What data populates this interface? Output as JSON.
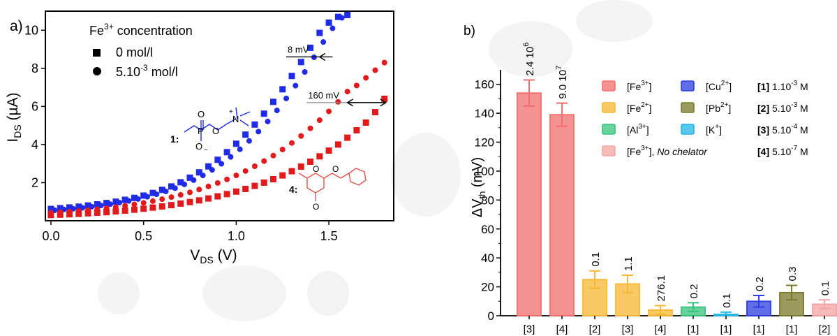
{
  "colors": {
    "blue": "#1f2be6",
    "red": "#e31a1c",
    "fe3": "#f26d6d",
    "fe2": "#f7b733",
    "al": "#35c27b",
    "cu": "#2c3ee0",
    "pb": "#7a7a2a",
    "k": "#22b6e6",
    "nochel": "#f4a3a3"
  },
  "chart_data": [
    {
      "type": "scatter",
      "panel_label": "a)",
      "xlabel_main": "V",
      "xlabel_sub": "DS",
      "xlabel_unit": " (V)",
      "ylabel_main": "I",
      "ylabel_sub": "DS",
      "ylabel_unit": " (µA)",
      "xlim": [
        -0.03,
        1.85
      ],
      "ylim": [
        0,
        11
      ],
      "xticks": [
        "0.0",
        "0.5",
        "1.0",
        "1.5"
      ],
      "yticks": [
        "2",
        "4",
        "6",
        "8",
        "10"
      ],
      "legend_title": "Fe",
      "legend_title_sup": "3+",
      "legend_title_rest": " concentration",
      "legend": [
        {
          "marker": "square",
          "label": "0 mol/l"
        },
        {
          "marker": "circle",
          "label_pre": "5.10",
          "label_sup": "-3",
          "label_post": " mol/l"
        }
      ],
      "series": [
        {
          "compound": "1",
          "marker_style": "square",
          "color": "blue",
          "x": [
            0.0,
            0.05,
            0.1,
            0.15,
            0.2,
            0.25,
            0.3,
            0.35,
            0.4,
            0.45,
            0.5,
            0.55,
            0.6,
            0.65,
            0.7,
            0.75,
            0.8,
            0.85,
            0.9,
            0.95,
            1.0,
            1.05,
            1.1,
            1.15,
            1.2,
            1.25,
            1.3,
            1.35,
            1.4,
            1.45,
            1.5,
            1.55,
            1.6
          ],
          "y": [
            0.62,
            0.66,
            0.7,
            0.74,
            0.8,
            0.86,
            0.93,
            1.0,
            1.1,
            1.2,
            1.32,
            1.46,
            1.62,
            1.8,
            2.02,
            2.26,
            2.54,
            2.85,
            3.2,
            3.6,
            4.04,
            4.52,
            5.05,
            5.62,
            6.24,
            6.9,
            7.6,
            8.33,
            9.08,
            9.86,
            10.4,
            10.7,
            10.8
          ]
        },
        {
          "compound": "1",
          "marker_style": "circle",
          "color": "blue",
          "x": [
            0.02,
            0.07,
            0.12,
            0.17,
            0.22,
            0.27,
            0.32,
            0.37,
            0.42,
            0.47,
            0.52,
            0.57,
            0.62,
            0.67,
            0.72,
            0.77,
            0.82,
            0.87,
            0.92,
            0.97,
            1.02,
            1.07,
            1.12,
            1.17,
            1.22,
            1.27,
            1.32,
            1.37,
            1.42,
            1.47,
            1.52,
            1.57
          ],
          "y": [
            0.55,
            0.59,
            0.63,
            0.68,
            0.74,
            0.8,
            0.87,
            0.95,
            1.04,
            1.14,
            1.26,
            1.39,
            1.54,
            1.71,
            1.91,
            2.13,
            2.38,
            2.67,
            2.99,
            3.35,
            3.75,
            4.19,
            4.68,
            5.21,
            5.79,
            6.42,
            7.09,
            7.81,
            8.58,
            9.38,
            10.1,
            10.65
          ]
        },
        {
          "compound": "4",
          "marker_style": "square",
          "color": "red",
          "x": [
            0.0,
            0.05,
            0.1,
            0.15,
            0.2,
            0.25,
            0.3,
            0.35,
            0.4,
            0.45,
            0.5,
            0.55,
            0.6,
            0.65,
            0.7,
            0.75,
            0.8,
            0.85,
            0.9,
            0.95,
            1.0,
            1.05,
            1.1,
            1.15,
            1.2,
            1.25,
            1.3,
            1.35,
            1.4,
            1.45,
            1.5,
            1.55,
            1.6,
            1.65,
            1.7,
            1.75,
            1.8
          ],
          "y": [
            0.3,
            0.32,
            0.34,
            0.36,
            0.39,
            0.42,
            0.45,
            0.49,
            0.53,
            0.58,
            0.63,
            0.69,
            0.75,
            0.82,
            0.9,
            0.98,
            1.07,
            1.17,
            1.28,
            1.4,
            1.53,
            1.67,
            1.83,
            2.0,
            2.18,
            2.38,
            2.6,
            2.84,
            3.1,
            3.38,
            3.68,
            4.0,
            4.36,
            4.75,
            5.15,
            5.7,
            6.4
          ]
        },
        {
          "compound": "4",
          "marker_style": "circle",
          "color": "red",
          "x": [
            0.0,
            0.05,
            0.1,
            0.15,
            0.2,
            0.25,
            0.3,
            0.35,
            0.4,
            0.45,
            0.5,
            0.55,
            0.6,
            0.65,
            0.7,
            0.75,
            0.8,
            0.85,
            0.9,
            0.95,
            1.0,
            1.05,
            1.1,
            1.15,
            1.2,
            1.25,
            1.3,
            1.35,
            1.4,
            1.45,
            1.5,
            1.55,
            1.6,
            1.65,
            1.7,
            1.75,
            1.8
          ],
          "y": [
            0.42,
            0.45,
            0.48,
            0.52,
            0.56,
            0.61,
            0.66,
            0.72,
            0.79,
            0.86,
            0.94,
            1.03,
            1.13,
            1.24,
            1.36,
            1.49,
            1.64,
            1.8,
            1.98,
            2.17,
            2.38,
            2.61,
            2.86,
            3.13,
            3.42,
            3.74,
            4.08,
            4.45,
            4.85,
            5.28,
            5.74,
            6.24,
            6.78,
            7.1,
            7.5,
            7.9,
            8.3
          ]
        }
      ],
      "annotations": [
        {
          "text": "8 mV",
          "line_y": 8.6,
          "x_start": 1.27,
          "x_end": 1.52,
          "arrow_x": 1.45
        },
        {
          "text": "160 mV",
          "line_y": 6.2,
          "x_start": 1.38,
          "x_end": 1.8,
          "arrow_x": 1.6
        }
      ],
      "compound_labels": [
        {
          "text": "1:",
          "color": "blue"
        },
        {
          "text": "4:",
          "color": "red"
        }
      ]
    },
    {
      "type": "bar",
      "panel_label": "b)",
      "ylabel_main": "ΔV",
      "ylabel_sub": "th",
      "ylabel_unit": " (mV)",
      "ylim": [
        0,
        170
      ],
      "yticks": [
        "0",
        "20",
        "40",
        "60",
        "80",
        "100",
        "120",
        "140",
        "160"
      ],
      "categories": [
        "[3]",
        "[4]",
        "[2]",
        "[3]",
        "[4]",
        "[1]",
        "[1]",
        "[1]",
        "[1]",
        "[2]"
      ],
      "values": [
        154,
        139,
        25,
        22,
        4,
        6,
        1,
        10,
        16,
        8
      ],
      "errors": [
        9,
        8,
        6,
        6,
        3,
        3,
        1.5,
        4,
        5,
        3
      ],
      "bar_colors": [
        "fe3",
        "fe3",
        "fe2",
        "fe2",
        "fe2",
        "al",
        "k",
        "cu",
        "pb",
        "nochel"
      ],
      "bar_labels": [
        {
          "base": "2.4 10",
          "sup": "6"
        },
        {
          "base": "9.0 10",
          "sup": "7"
        },
        {
          "base": "0.1",
          "sup": ""
        },
        {
          "base": "1.1",
          "sup": ""
        },
        {
          "base": "276.1",
          "sup": ""
        },
        {
          "base": "0.2",
          "sup": ""
        },
        {
          "base": "0.1",
          "sup": ""
        },
        {
          "base": "0.2",
          "sup": ""
        },
        {
          "base": "0.3",
          "sup": ""
        },
        {
          "base": "0.1",
          "sup": ""
        }
      ],
      "legend": [
        {
          "color": "fe3",
          "base": "[Fe",
          "sup": "3+",
          "tail": "]",
          "italic": ""
        },
        {
          "color": "fe2",
          "base": "[Fe",
          "sup": "2+",
          "tail": "]",
          "italic": ""
        },
        {
          "color": "al",
          "base": "[Al",
          "sup": "3+",
          "tail": "]",
          "italic": ""
        },
        {
          "color": "nochel",
          "base": "[Fe",
          "sup": "3+",
          "tail": "], ",
          "italic": "No chelator"
        },
        {
          "color": "cu",
          "base": "[Cu",
          "sup": "2+",
          "tail": "]",
          "italic": ""
        },
        {
          "color": "pb",
          "base": "[Pb",
          "sup": "2+",
          "tail": "]",
          "italic": ""
        },
        {
          "color": "k",
          "base": "[K",
          "sup": "+",
          "tail": "]",
          "italic": ""
        }
      ],
      "concentrations": [
        {
          "key": "[1]",
          "base": " 1.10",
          "sup": "-3",
          "tail": " M"
        },
        {
          "key": "[2]",
          "base": " 5.10",
          "sup": "-3",
          "tail": " M"
        },
        {
          "key": "[3]",
          "base": " 5.10",
          "sup": "-4",
          "tail": " M"
        },
        {
          "key": "[4]",
          "base": " 5.10",
          "sup": "-7",
          "tail": " M"
        }
      ]
    }
  ]
}
